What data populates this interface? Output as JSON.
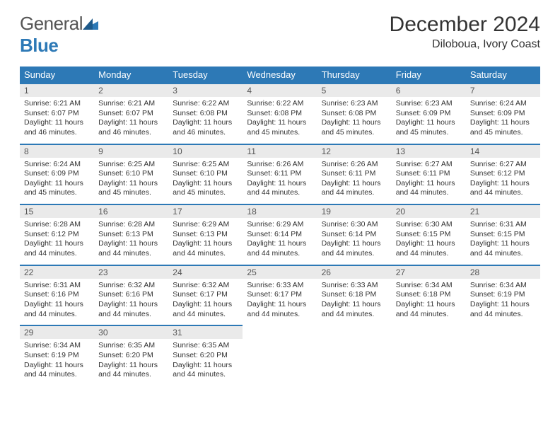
{
  "logo": {
    "text1": "General",
    "text2": "Blue"
  },
  "title": "December 2024",
  "location": "Diloboua, Ivory Coast",
  "colors": {
    "header_bg": "#2d79b6",
    "header_text": "#ffffff",
    "daynum_bg": "#eaeaea",
    "daynum_border": "#2d79b6",
    "body_text": "#333333",
    "page_bg": "#ffffff"
  },
  "typography": {
    "title_fontsize": 30,
    "location_fontsize": 16,
    "dayhead_fontsize": 13,
    "daynum_fontsize": 12,
    "cell_fontsize": 10.5
  },
  "day_headers": [
    "Sunday",
    "Monday",
    "Tuesday",
    "Wednesday",
    "Thursday",
    "Friday",
    "Saturday"
  ],
  "weeks": [
    [
      {
        "n": "1",
        "sr": "6:21 AM",
        "ss": "6:07 PM",
        "dl": "11 hours and 46 minutes."
      },
      {
        "n": "2",
        "sr": "6:21 AM",
        "ss": "6:07 PM",
        "dl": "11 hours and 46 minutes."
      },
      {
        "n": "3",
        "sr": "6:22 AM",
        "ss": "6:08 PM",
        "dl": "11 hours and 46 minutes."
      },
      {
        "n": "4",
        "sr": "6:22 AM",
        "ss": "6:08 PM",
        "dl": "11 hours and 45 minutes."
      },
      {
        "n": "5",
        "sr": "6:23 AM",
        "ss": "6:08 PM",
        "dl": "11 hours and 45 minutes."
      },
      {
        "n": "6",
        "sr": "6:23 AM",
        "ss": "6:09 PM",
        "dl": "11 hours and 45 minutes."
      },
      {
        "n": "7",
        "sr": "6:24 AM",
        "ss": "6:09 PM",
        "dl": "11 hours and 45 minutes."
      }
    ],
    [
      {
        "n": "8",
        "sr": "6:24 AM",
        "ss": "6:09 PM",
        "dl": "11 hours and 45 minutes."
      },
      {
        "n": "9",
        "sr": "6:25 AM",
        "ss": "6:10 PM",
        "dl": "11 hours and 45 minutes."
      },
      {
        "n": "10",
        "sr": "6:25 AM",
        "ss": "6:10 PM",
        "dl": "11 hours and 45 minutes."
      },
      {
        "n": "11",
        "sr": "6:26 AM",
        "ss": "6:11 PM",
        "dl": "11 hours and 44 minutes."
      },
      {
        "n": "12",
        "sr": "6:26 AM",
        "ss": "6:11 PM",
        "dl": "11 hours and 44 minutes."
      },
      {
        "n": "13",
        "sr": "6:27 AM",
        "ss": "6:11 PM",
        "dl": "11 hours and 44 minutes."
      },
      {
        "n": "14",
        "sr": "6:27 AM",
        "ss": "6:12 PM",
        "dl": "11 hours and 44 minutes."
      }
    ],
    [
      {
        "n": "15",
        "sr": "6:28 AM",
        "ss": "6:12 PM",
        "dl": "11 hours and 44 minutes."
      },
      {
        "n": "16",
        "sr": "6:28 AM",
        "ss": "6:13 PM",
        "dl": "11 hours and 44 minutes."
      },
      {
        "n": "17",
        "sr": "6:29 AM",
        "ss": "6:13 PM",
        "dl": "11 hours and 44 minutes."
      },
      {
        "n": "18",
        "sr": "6:29 AM",
        "ss": "6:14 PM",
        "dl": "11 hours and 44 minutes."
      },
      {
        "n": "19",
        "sr": "6:30 AM",
        "ss": "6:14 PM",
        "dl": "11 hours and 44 minutes."
      },
      {
        "n": "20",
        "sr": "6:30 AM",
        "ss": "6:15 PM",
        "dl": "11 hours and 44 minutes."
      },
      {
        "n": "21",
        "sr": "6:31 AM",
        "ss": "6:15 PM",
        "dl": "11 hours and 44 minutes."
      }
    ],
    [
      {
        "n": "22",
        "sr": "6:31 AM",
        "ss": "6:16 PM",
        "dl": "11 hours and 44 minutes."
      },
      {
        "n": "23",
        "sr": "6:32 AM",
        "ss": "6:16 PM",
        "dl": "11 hours and 44 minutes."
      },
      {
        "n": "24",
        "sr": "6:32 AM",
        "ss": "6:17 PM",
        "dl": "11 hours and 44 minutes."
      },
      {
        "n": "25",
        "sr": "6:33 AM",
        "ss": "6:17 PM",
        "dl": "11 hours and 44 minutes."
      },
      {
        "n": "26",
        "sr": "6:33 AM",
        "ss": "6:18 PM",
        "dl": "11 hours and 44 minutes."
      },
      {
        "n": "27",
        "sr": "6:34 AM",
        "ss": "6:18 PM",
        "dl": "11 hours and 44 minutes."
      },
      {
        "n": "28",
        "sr": "6:34 AM",
        "ss": "6:19 PM",
        "dl": "11 hours and 44 minutes."
      }
    ],
    [
      {
        "n": "29",
        "sr": "6:34 AM",
        "ss": "6:19 PM",
        "dl": "11 hours and 44 minutes."
      },
      {
        "n": "30",
        "sr": "6:35 AM",
        "ss": "6:20 PM",
        "dl": "11 hours and 44 minutes."
      },
      {
        "n": "31",
        "sr": "6:35 AM",
        "ss": "6:20 PM",
        "dl": "11 hours and 44 minutes."
      },
      null,
      null,
      null,
      null
    ]
  ],
  "labels": {
    "sunrise": "Sunrise:",
    "sunset": "Sunset:",
    "daylight": "Daylight:"
  }
}
